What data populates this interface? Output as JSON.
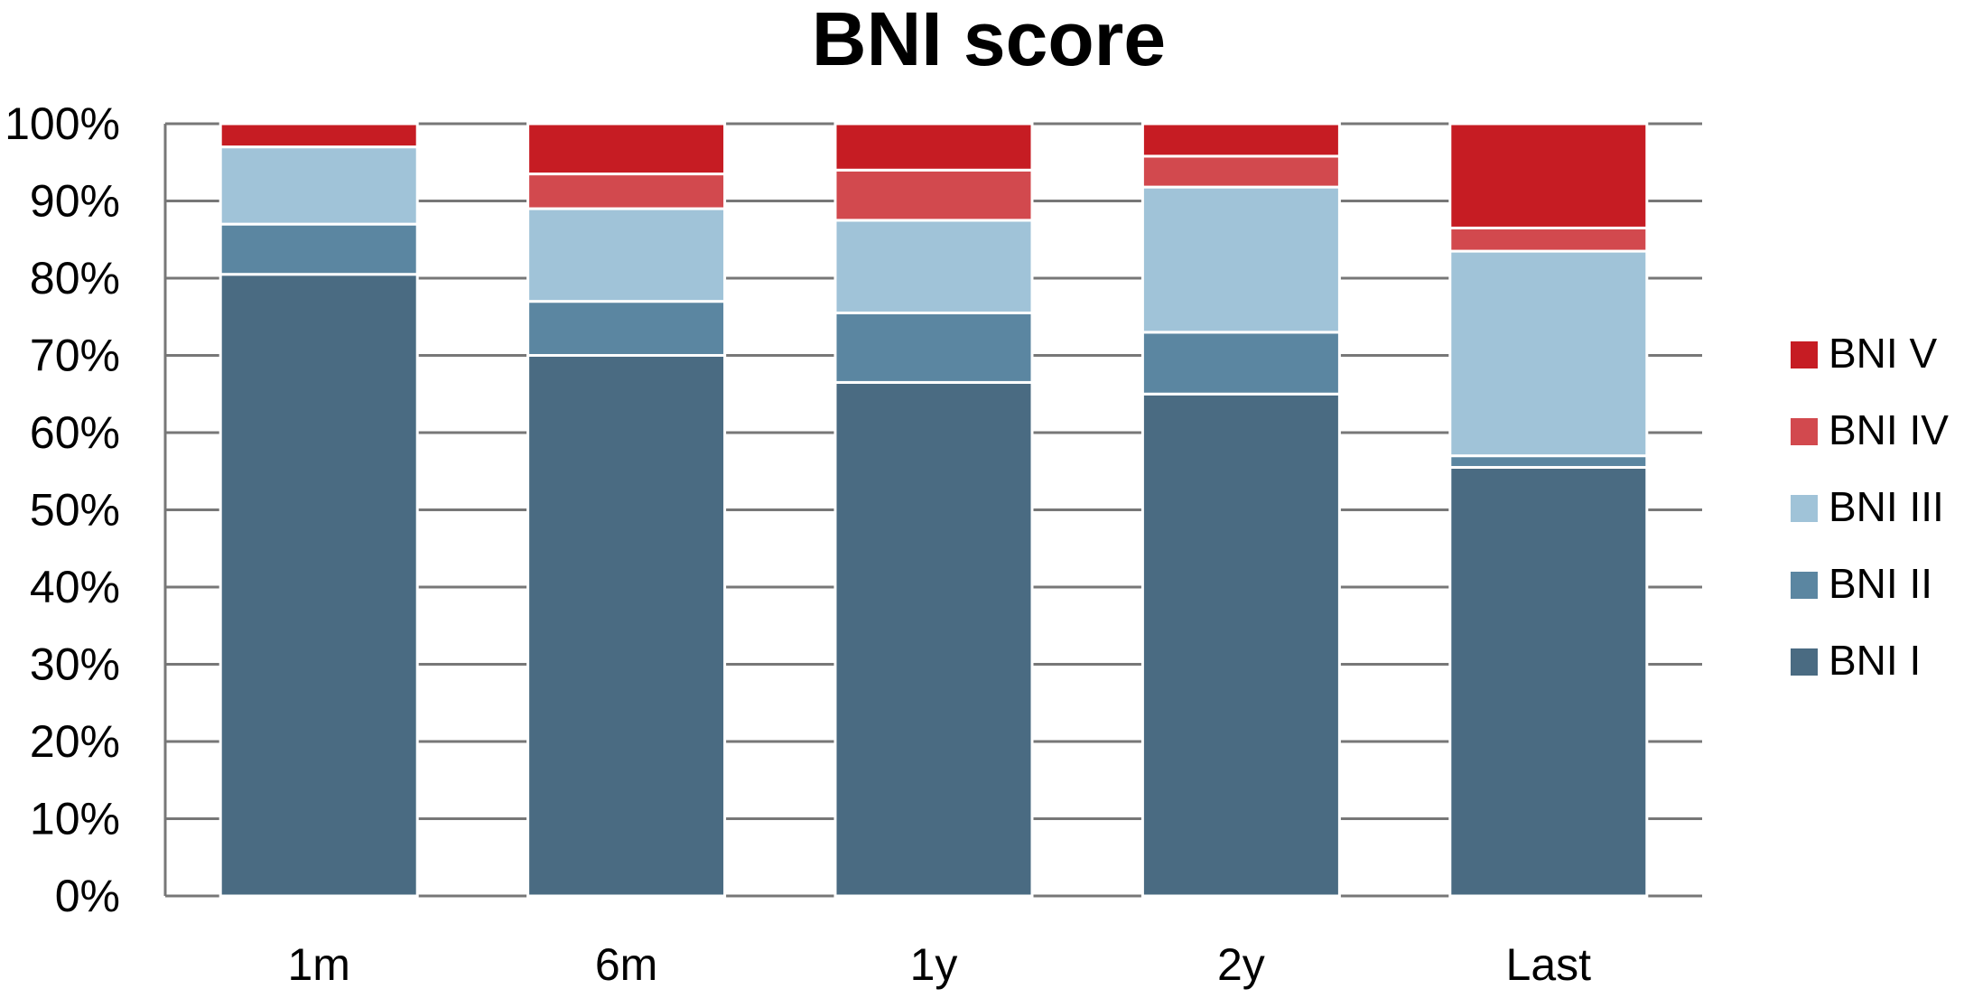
{
  "chart_data": {
    "type": "bar",
    "stacked": true,
    "title": "BNI score",
    "xlabel": "",
    "ylabel": "",
    "ylim": [
      0,
      100
    ],
    "y_tick_labels": [
      "0%",
      "10%",
      "20%",
      "30%",
      "40%",
      "50%",
      "60%",
      "70%",
      "80%",
      "90%",
      "100%"
    ],
    "grid": true,
    "legend_position": "right",
    "categories": [
      "1m",
      "6m",
      "1y",
      "2y",
      "Last"
    ],
    "series": [
      {
        "name": "BNI I",
        "color": "#4a6b82",
        "values": [
          80.5,
          70.0,
          66.5,
          65.0,
          55.5
        ]
      },
      {
        "name": "BNI II",
        "color": "#5b86a1",
        "values": [
          6.5,
          7.0,
          9.0,
          8.0,
          1.5
        ]
      },
      {
        "name": "BNI III",
        "color": "#a0c3d8",
        "values": [
          10.0,
          12.0,
          12.0,
          18.8,
          26.5
        ]
      },
      {
        "name": "BNI IV",
        "color": "#d2494e",
        "values": [
          0.0,
          4.5,
          6.5,
          4.0,
          3.0
        ]
      },
      {
        "name": "BNI V",
        "color": "#c61c23",
        "values": [
          3.0,
          6.5,
          6.0,
          4.2,
          13.5
        ]
      }
    ]
  }
}
